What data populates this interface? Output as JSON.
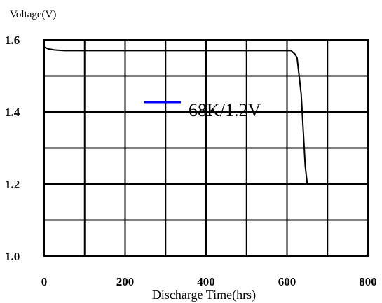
{
  "chart_data": {
    "type": "line",
    "title": "",
    "xlabel": "Discharge Time(hrs)",
    "ylabel": "Voltage(V)",
    "xlim": [
      0,
      800
    ],
    "ylim": [
      1.0,
      1.6
    ],
    "x_ticks": [
      0,
      200,
      400,
      600,
      800
    ],
    "x_tick_labels": [
      "0",
      "200",
      "400",
      "600",
      "800"
    ],
    "y_ticks": [
      1.0,
      1.2,
      1.4,
      1.6
    ],
    "y_tick_labels": [
      "1.0",
      "1.2",
      "1.4",
      "1.6"
    ],
    "x_grid_step": 100,
    "y_grid_step": 0.1,
    "grid": true,
    "legend_position": "upper-center",
    "series": [
      {
        "name": "68K/1.2V",
        "line_color": "#000000",
        "legend_color": "#0000ff",
        "x": [
          0,
          10,
          25,
          50,
          100,
          200,
          300,
          400,
          500,
          600,
          610,
          620,
          625,
          630,
          635,
          640,
          645,
          650
        ],
        "y": [
          1.58,
          1.575,
          1.572,
          1.57,
          1.57,
          1.57,
          1.57,
          1.57,
          1.57,
          1.57,
          1.57,
          1.56,
          1.55,
          1.5,
          1.45,
          1.35,
          1.25,
          1.2
        ]
      }
    ]
  }
}
